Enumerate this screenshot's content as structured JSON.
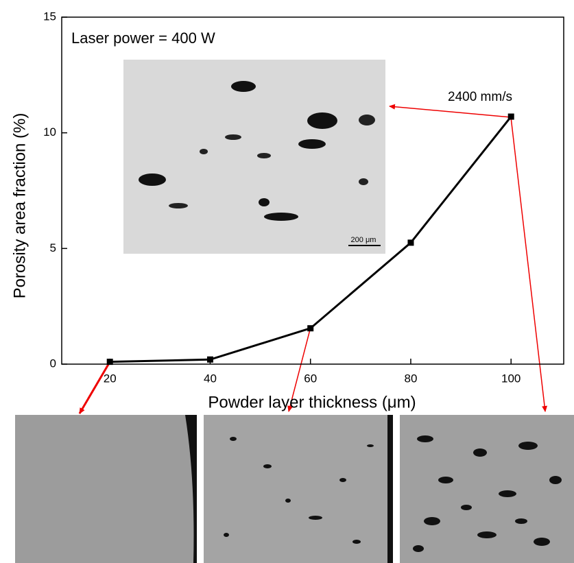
{
  "chart_data": {
    "type": "line",
    "x": [
      20,
      40,
      60,
      80,
      100
    ],
    "series": [
      {
        "name": "Porosity",
        "color": "#000000",
        "values": [
          0.1,
          0.2,
          1.55,
          5.25,
          10.7
        ]
      }
    ],
    "xlim": [
      10.4,
      110.5
    ],
    "xticks": [
      20,
      40,
      60,
      80,
      100
    ],
    "ylim": [
      0,
      15
    ],
    "yticks": [
      0,
      5,
      10,
      15
    ],
    "x_label": "Powder layer thickness (μm)",
    "y_label": "Porosity area fraction  (%)",
    "annotations": [
      "Laser power = 400 W",
      "2400 mm/s",
      "200 μm"
    ]
  }
}
